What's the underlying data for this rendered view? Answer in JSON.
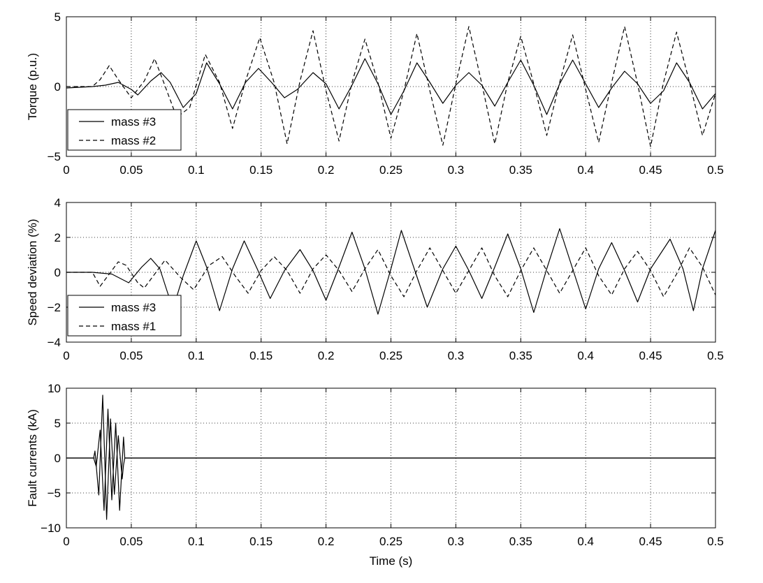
{
  "chart_data": [
    {
      "type": "line",
      "xlabel": "",
      "ylabel": "Torque (p.u.)",
      "xlim": [
        0,
        0.5
      ],
      "ylim": [
        -5,
        5
      ],
      "xticks": [
        0,
        0.05,
        0.1,
        0.15,
        0.2,
        0.25,
        0.3,
        0.35,
        0.4,
        0.45,
        0.5
      ],
      "xtick_labels": [
        "0",
        "0.05",
        "0.1",
        "0.15",
        "0.2",
        "0.25",
        "0.3",
        "0.35",
        "0.4",
        "0.45",
        "0.5"
      ],
      "yticks": [
        -5,
        0,
        5
      ],
      "ytick_labels": [
        "−5",
        "0",
        "5"
      ],
      "grid": true,
      "legend_position": "bottom-left",
      "series": [
        {
          "name": "mass #3",
          "style": "solid",
          "x": [
            0,
            0.02,
            0.03,
            0.04,
            0.05,
            0.055,
            0.065,
            0.073,
            0.08,
            0.09,
            0.1,
            0.108,
            0.118,
            0.128,
            0.138,
            0.148,
            0.158,
            0.168,
            0.178,
            0.19,
            0.2,
            0.21,
            0.22,
            0.23,
            0.24,
            0.25,
            0.26,
            0.27,
            0.28,
            0.29,
            0.3,
            0.31,
            0.32,
            0.33,
            0.34,
            0.35,
            0.36,
            0.37,
            0.38,
            0.39,
            0.4,
            0.41,
            0.42,
            0.43,
            0.44,
            0.45,
            0.46,
            0.47,
            0.48,
            0.49,
            0.5
          ],
          "y": [
            -0.1,
            0,
            0.1,
            0.3,
            -0.2,
            -0.6,
            0.4,
            1.0,
            0.3,
            -1.5,
            -0.5,
            1.7,
            0.2,
            -1.6,
            0.3,
            1.3,
            0.3,
            -0.8,
            -0.2,
            1.0,
            0.2,
            -1.6,
            0.1,
            2.0,
            0.2,
            -2.0,
            -0.3,
            1.7,
            0.3,
            -1.2,
            0.1,
            1.0,
            0.1,
            -1.4,
            0.3,
            1.9,
            0.1,
            -2.0,
            0.2,
            1.9,
            0.2,
            -1.5,
            -0.1,
            1.1,
            0.2,
            -1.2,
            -0.3,
            1.7,
            0.3,
            -1.6,
            -0.5
          ]
        },
        {
          "name": "mass #2",
          "style": "dashed",
          "x": [
            0,
            0.02,
            0.026,
            0.033,
            0.04,
            0.05,
            0.06,
            0.068,
            0.075,
            0.085,
            0.095,
            0.107,
            0.118,
            0.128,
            0.138,
            0.149,
            0.16,
            0.17,
            0.18,
            0.19,
            0.2,
            0.21,
            0.22,
            0.23,
            0.24,
            0.25,
            0.26,
            0.27,
            0.28,
            0.29,
            0.3,
            0.31,
            0.32,
            0.33,
            0.34,
            0.35,
            0.36,
            0.37,
            0.38,
            0.39,
            0.4,
            0.41,
            0.42,
            0.43,
            0.44,
            0.45,
            0.46,
            0.47,
            0.48,
            0.49,
            0.5
          ],
          "y": [
            0,
            0,
            0.5,
            1.5,
            0.5,
            -0.8,
            0.4,
            2.0,
            0.3,
            -2.2,
            -1.5,
            2.3,
            0.3,
            -3.0,
            0.4,
            3.5,
            0.3,
            -4.1,
            0.4,
            4.0,
            -0.3,
            -3.9,
            0.3,
            3.4,
            0.3,
            -3.7,
            -0.3,
            3.8,
            -0.3,
            -4.2,
            0.2,
            4.3,
            0.2,
            -4.1,
            0.3,
            3.6,
            0.2,
            -3.5,
            0.3,
            3.7,
            -0.2,
            -4.0,
            0.3,
            4.3,
            0.2,
            -4.3,
            0.3,
            3.9,
            0.3,
            -3.5,
            -0.5
          ]
        }
      ]
    },
    {
      "type": "line",
      "xlabel": "",
      "ylabel": "Speed deviation (%)",
      "xlim": [
        0,
        0.5
      ],
      "ylim": [
        -4,
        4
      ],
      "xticks": [
        0,
        0.05,
        0.1,
        0.15,
        0.2,
        0.25,
        0.3,
        0.35,
        0.4,
        0.45,
        0.5
      ],
      "xtick_labels": [
        "0",
        "0.05",
        "0.1",
        "0.15",
        "0.2",
        "0.25",
        "0.3",
        "0.35",
        "0.4",
        "0.45",
        "0.5"
      ],
      "yticks": [
        -4,
        -2,
        0,
        2,
        4
      ],
      "ytick_labels": [
        "−4",
        "−2",
        "0",
        "2",
        "4"
      ],
      "grid": true,
      "legend_position": "bottom-left",
      "series": [
        {
          "name": "mass #3",
          "style": "solid",
          "x": [
            0,
            0.02,
            0.035,
            0.048,
            0.058,
            0.065,
            0.072,
            0.082,
            0.09,
            0.1,
            0.108,
            0.118,
            0.128,
            0.137,
            0.147,
            0.157,
            0.168,
            0.18,
            0.19,
            0.2,
            0.21,
            0.22,
            0.23,
            0.24,
            0.25,
            0.258,
            0.268,
            0.278,
            0.29,
            0.3,
            0.31,
            0.32,
            0.33,
            0.34,
            0.35,
            0.36,
            0.37,
            0.38,
            0.39,
            0.4,
            0.41,
            0.42,
            0.43,
            0.44,
            0.45,
            0.465,
            0.475,
            0.483,
            0.49,
            0.5
          ],
          "y": [
            0,
            0,
            -0.1,
            -0.6,
            0.3,
            0.8,
            0.2,
            -2.1,
            -0.2,
            1.8,
            0.3,
            -2.2,
            0.2,
            1.8,
            0.2,
            -1.5,
            0.1,
            1.3,
            0.1,
            -1.6,
            0.3,
            2.3,
            0.2,
            -2.4,
            0.2,
            2.4,
            0.2,
            -2.0,
            0.2,
            1.5,
            0.1,
            -1.5,
            0.3,
            2.2,
            0.2,
            -2.3,
            0.2,
            2.5,
            0.2,
            -2.1,
            0.2,
            1.7,
            0.1,
            -1.7,
            0.2,
            1.9,
            0.2,
            -2.2,
            0.2,
            2.4
          ]
        },
        {
          "name": "mass #1",
          "style": "dashed",
          "x": [
            0,
            0.02,
            0.026,
            0.04,
            0.046,
            0.055,
            0.06,
            0.065,
            0.076,
            0.088,
            0.098,
            0.11,
            0.12,
            0.13,
            0.14,
            0.15,
            0.16,
            0.17,
            0.18,
            0.19,
            0.2,
            0.21,
            0.22,
            0.23,
            0.24,
            0.25,
            0.26,
            0.27,
            0.28,
            0.29,
            0.3,
            0.31,
            0.32,
            0.33,
            0.34,
            0.35,
            0.36,
            0.37,
            0.38,
            0.39,
            0.4,
            0.41,
            0.42,
            0.43,
            0.44,
            0.45,
            0.46,
            0.47,
            0.48,
            0.49,
            0.5
          ],
          "y": [
            0,
            0,
            -0.8,
            0.6,
            0.4,
            -0.6,
            -0.9,
            -0.4,
            0.7,
            -0.3,
            -1.0,
            0.4,
            0.9,
            -0.2,
            -1.2,
            0.1,
            0.9,
            0.1,
            -1.2,
            0.2,
            1.0,
            0.1,
            -1.1,
            0.2,
            1.3,
            -0.2,
            -1.4,
            0.1,
            1.4,
            0.1,
            -1.2,
            0.1,
            1.4,
            -0.2,
            -1.4,
            0.1,
            1.4,
            0.1,
            -1.2,
            0.1,
            1.4,
            -0.2,
            -1.3,
            0.2,
            1.2,
            0.1,
            -1.4,
            -0.1,
            1.4,
            0.3,
            -1.3
          ]
        }
      ]
    },
    {
      "type": "line",
      "xlabel": "Time (s)",
      "ylabel": "Fault currents (kA)",
      "xlim": [
        0,
        0.5
      ],
      "ylim": [
        -10,
        10
      ],
      "xticks": [
        0,
        0.05,
        0.1,
        0.15,
        0.2,
        0.25,
        0.3,
        0.35,
        0.4,
        0.45,
        0.5
      ],
      "xtick_labels": [
        "0",
        "0.05",
        "0.1",
        "0.15",
        "0.2",
        "0.25",
        "0.3",
        "0.35",
        "0.4",
        "0.45",
        "0.5"
      ],
      "yticks": [
        -10,
        -5,
        0,
        5,
        10
      ],
      "ytick_labels": [
        "−10",
        "−5",
        "0",
        "5",
        "10"
      ],
      "grid": true,
      "series": [
        {
          "style": "solid",
          "x": [
            0,
            0.021,
            0.022,
            0.025,
            0.028,
            0.031,
            0.034,
            0.037,
            0.04,
            0.043,
            0.044,
            0.045,
            0.5
          ],
          "y": [
            0,
            0,
            1.0,
            -5.3,
            9.0,
            -8.8,
            5.6,
            -5.2,
            3.2,
            -3.0,
            -1.0,
            0,
            0
          ]
        },
        {
          "style": "solid",
          "x": [
            0,
            0.021,
            0.023,
            0.026,
            0.029,
            0.032,
            0.035,
            0.038,
            0.041,
            0.044,
            0.045,
            0.5
          ],
          "y": [
            0,
            0,
            -1.2,
            4.0,
            -7.5,
            7.0,
            -6.0,
            5.0,
            -7.5,
            3.0,
            0,
            0
          ]
        }
      ]
    }
  ]
}
